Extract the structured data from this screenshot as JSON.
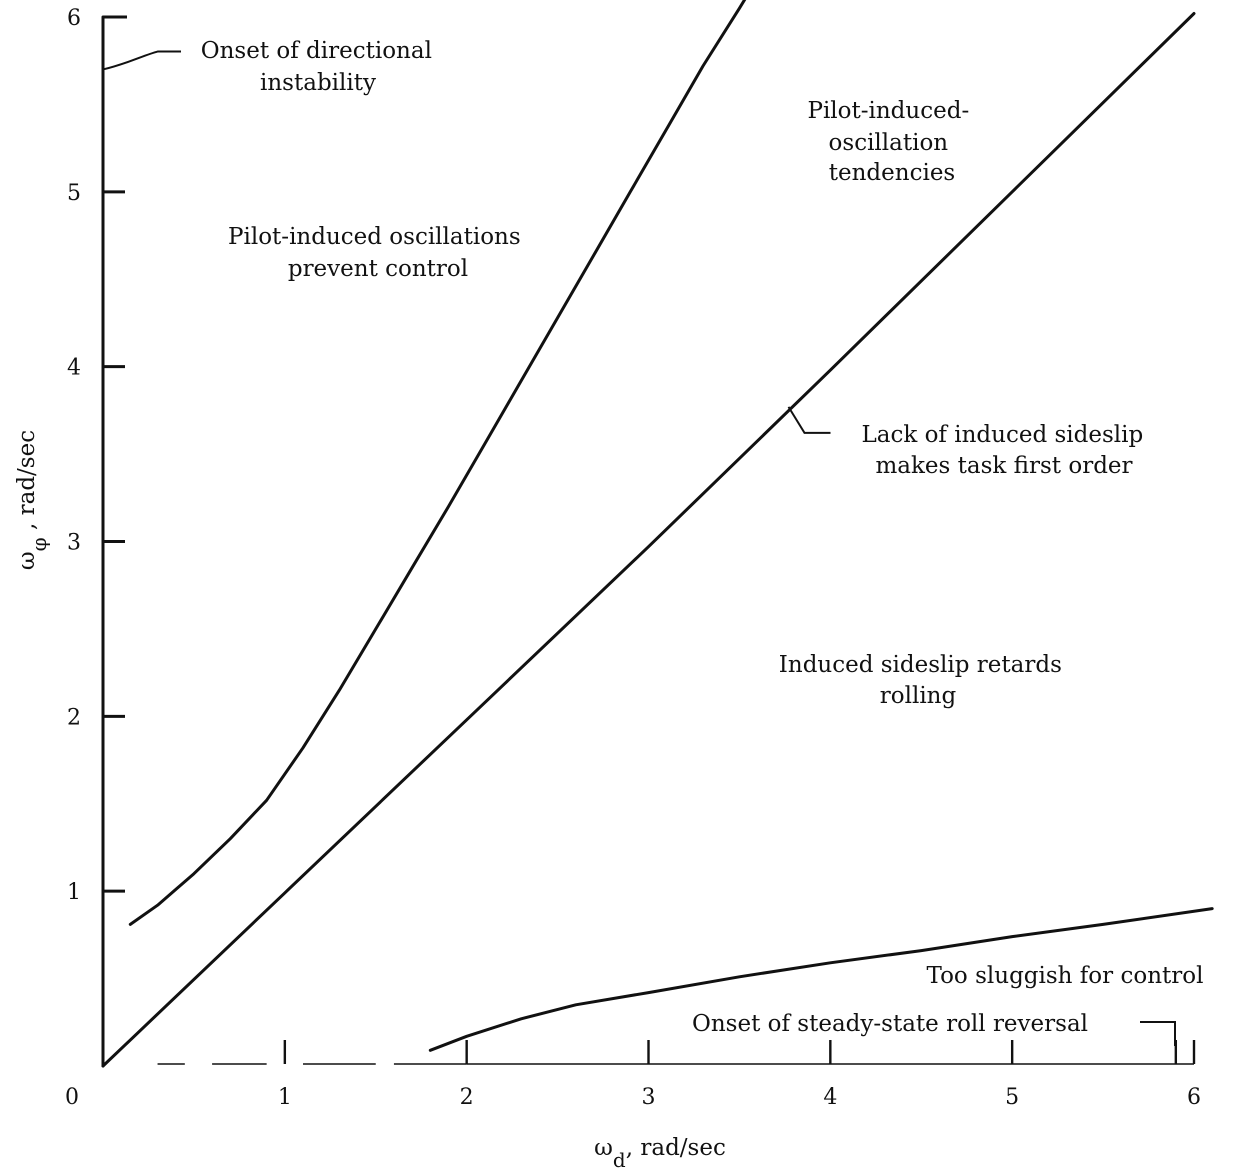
{
  "chart_data": {
    "type": "line",
    "xlabel": "ω_d, rad/sec",
    "ylabel": "ω_φ , rad/sec",
    "xlabel_main": "ω",
    "xlabel_sub": "d",
    "xlabel_tail": ", rad/sec",
    "ylabel_main": "ω",
    "ylabel_sub": "φ",
    "ylabel_tail": " , rad/sec",
    "xlim": [
      0,
      6
    ],
    "ylim": [
      0,
      6
    ],
    "x_ticks": [
      "0",
      "1",
      "2",
      "3",
      "4",
      "5",
      "6"
    ],
    "y_ticks": [
      "1",
      "2",
      "3",
      "4",
      "5",
      "6"
    ],
    "grid": false,
    "series": [
      {
        "x": [
          0.15,
          0.3,
          0.5,
          0.7,
          0.9,
          1.1,
          1.3,
          1.5,
          1.7,
          1.9,
          2.1,
          2.3,
          2.5,
          2.7,
          2.9,
          3.1,
          3.3,
          3.5,
          3.6
        ],
        "y": [
          0.81,
          0.92,
          1.1,
          1.3,
          1.52,
          1.82,
          2.15,
          2.5,
          2.85,
          3.2,
          3.56,
          3.92,
          4.28,
          4.64,
          5.0,
          5.36,
          5.72,
          6.05,
          6.22
        ]
      },
      {
        "x": [
          0.0,
          1.0,
          2.0,
          3.0,
          4.0,
          5.0,
          6.0
        ],
        "y": [
          0.0,
          0.99,
          1.98,
          2.97,
          3.98,
          5.0,
          6.02
        ]
      },
      {
        "x": [
          1.8,
          2.0,
          2.3,
          2.6,
          3.0,
          3.5,
          4.0,
          4.5,
          5.0,
          5.5,
          6.1
        ],
        "y": [
          0.09,
          0.17,
          0.27,
          0.35,
          0.42,
          0.51,
          0.59,
          0.66,
          0.74,
          0.81,
          0.9
        ]
      },
      {
        "x": [
          0.0,
          0.0
        ],
        "y": [
          0.0,
          6.0
        ]
      }
    ],
    "roll_reversal_boundary": {
      "x": [
        0.0,
        6.0
      ],
      "y": [
        0.0,
        0.0
      ],
      "tick_marks_x": [
        1,
        2,
        3,
        4,
        5,
        5.9,
        6
      ]
    },
    "annotations": [
      {
        "id": "directional-instability",
        "lines": [
          "Onset of directional",
          "instability"
        ],
        "point": [
          0.0,
          5.7
        ]
      },
      {
        "id": "pio-prevent",
        "lines": [
          "Pilot-induced oscillations",
          "prevent control"
        ],
        "point": [
          1.5,
          4.75
        ]
      },
      {
        "id": "pio-tendencies",
        "lines": [
          "Pilot-induced-",
          "oscillation",
          "tendencies"
        ],
        "point": [
          4.55,
          5.35
        ]
      },
      {
        "id": "lack-sideslip",
        "lines": [
          "Lack of induced sideslip",
          "makes task first order"
        ],
        "point": [
          3.77,
          3.75
        ]
      },
      {
        "id": "sideslip-retards",
        "lines": [
          "Induced sideslip retards",
          "rolling"
        ],
        "point": [
          4.4,
          2.2
        ]
      },
      {
        "id": "too-sluggish",
        "lines": [
          "Too sluggish for control"
        ],
        "point": [
          5.5,
          0.5
        ]
      },
      {
        "id": "roll-reversal",
        "lines": [
          "Onset of steady-state roll reversal"
        ],
        "point": [
          5.9,
          0.0
        ]
      }
    ]
  }
}
